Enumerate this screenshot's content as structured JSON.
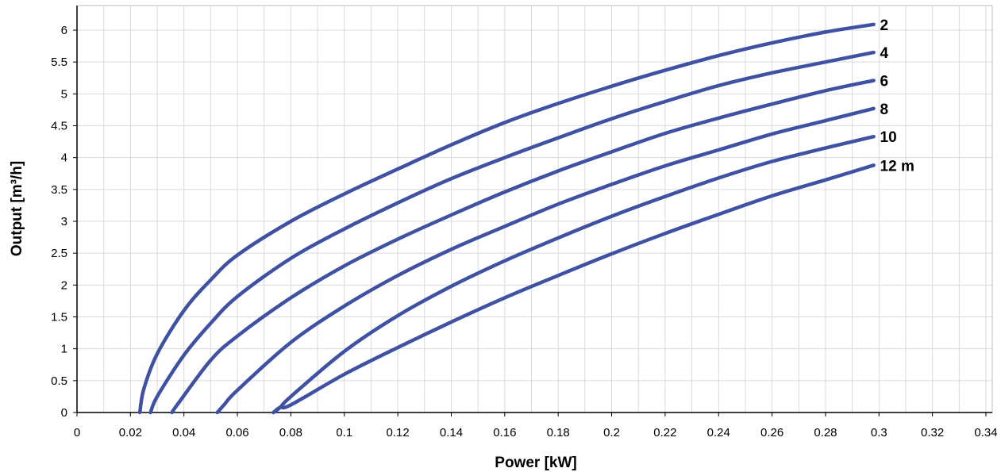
{
  "chart_data": {
    "type": "line",
    "title": "",
    "xlabel": "Power [kW]",
    "ylabel": "Output [m³/h]",
    "xlim": [
      0,
      0.34
    ],
    "ylim": [
      0,
      6.25
    ],
    "x_ticks": [
      "0",
      "0.02",
      "0.04",
      "0.06",
      "0.08",
      "0.1",
      "0.12",
      "0.14",
      "0.16",
      "0.18",
      "0.2",
      "0.22",
      "0.24",
      "0.26",
      "0.28",
      "0.3",
      "0.32",
      "0.34"
    ],
    "y_ticks": [
      "0",
      "0.5",
      "1",
      "1.5",
      "2",
      "2.5",
      "3",
      "3.5",
      "4",
      "4.5",
      "5",
      "5.5",
      "6"
    ],
    "grid": true,
    "legend": "inline-labels-right",
    "line_color": "#3f51a3",
    "series": [
      {
        "name": "2",
        "points": [
          [
            0.0235,
            0
          ],
          [
            0.025,
            0.37
          ],
          [
            0.03,
            0.92
          ],
          [
            0.04,
            1.6
          ],
          [
            0.05,
            2.08
          ],
          [
            0.06,
            2.47
          ],
          [
            0.08,
            3.0
          ],
          [
            0.1,
            3.43
          ],
          [
            0.12,
            3.82
          ],
          [
            0.14,
            4.2
          ],
          [
            0.16,
            4.55
          ],
          [
            0.18,
            4.85
          ],
          [
            0.2,
            5.12
          ],
          [
            0.22,
            5.37
          ],
          [
            0.24,
            5.6
          ],
          [
            0.26,
            5.8
          ],
          [
            0.28,
            5.97
          ],
          [
            0.298,
            6.09
          ]
        ]
      },
      {
        "name": "4",
        "points": [
          [
            0.0275,
            0
          ],
          [
            0.03,
            0.25
          ],
          [
            0.04,
            0.9
          ],
          [
            0.05,
            1.4
          ],
          [
            0.06,
            1.82
          ],
          [
            0.08,
            2.42
          ],
          [
            0.1,
            2.88
          ],
          [
            0.12,
            3.29
          ],
          [
            0.14,
            3.67
          ],
          [
            0.16,
            4.0
          ],
          [
            0.18,
            4.31
          ],
          [
            0.2,
            4.61
          ],
          [
            0.22,
            4.88
          ],
          [
            0.24,
            5.13
          ],
          [
            0.26,
            5.33
          ],
          [
            0.28,
            5.5
          ],
          [
            0.298,
            5.65
          ]
        ]
      },
      {
        "name": "6",
        "points": [
          [
            0.0355,
            0
          ],
          [
            0.038,
            0.15
          ],
          [
            0.05,
            0.82
          ],
          [
            0.06,
            1.2
          ],
          [
            0.08,
            1.8
          ],
          [
            0.1,
            2.3
          ],
          [
            0.12,
            2.72
          ],
          [
            0.14,
            3.1
          ],
          [
            0.16,
            3.46
          ],
          [
            0.18,
            3.79
          ],
          [
            0.2,
            4.09
          ],
          [
            0.22,
            4.38
          ],
          [
            0.24,
            4.62
          ],
          [
            0.26,
            4.84
          ],
          [
            0.28,
            5.05
          ],
          [
            0.298,
            5.21
          ]
        ]
      },
      {
        "name": "8",
        "points": [
          [
            0.0525,
            0
          ],
          [
            0.055,
            0.12
          ],
          [
            0.06,
            0.35
          ],
          [
            0.08,
            1.1
          ],
          [
            0.1,
            1.67
          ],
          [
            0.12,
            2.15
          ],
          [
            0.14,
            2.56
          ],
          [
            0.16,
            2.92
          ],
          [
            0.18,
            3.27
          ],
          [
            0.2,
            3.58
          ],
          [
            0.22,
            3.87
          ],
          [
            0.24,
            4.12
          ],
          [
            0.26,
            4.37
          ],
          [
            0.28,
            4.58
          ],
          [
            0.298,
            4.77
          ]
        ]
      },
      {
        "name": "10",
        "points": [
          [
            0.0735,
            0
          ],
          [
            0.076,
            0.08
          ],
          [
            0.08,
            0.25
          ],
          [
            0.1,
            0.96
          ],
          [
            0.12,
            1.52
          ],
          [
            0.14,
            1.98
          ],
          [
            0.16,
            2.38
          ],
          [
            0.18,
            2.74
          ],
          [
            0.2,
            3.08
          ],
          [
            0.22,
            3.39
          ],
          [
            0.24,
            3.68
          ],
          [
            0.26,
            3.94
          ],
          [
            0.28,
            4.15
          ],
          [
            0.298,
            4.33
          ]
        ]
      },
      {
        "name": "12 m",
        "points": [
          [
            0.0735,
            0
          ],
          [
            0.076,
            0.08
          ],
          [
            0.08,
            0.12
          ],
          [
            0.1,
            0.6
          ],
          [
            0.12,
            1.02
          ],
          [
            0.14,
            1.42
          ],
          [
            0.16,
            1.8
          ],
          [
            0.18,
            2.15
          ],
          [
            0.2,
            2.49
          ],
          [
            0.22,
            2.81
          ],
          [
            0.24,
            3.11
          ],
          [
            0.26,
            3.4
          ],
          [
            0.28,
            3.65
          ],
          [
            0.298,
            3.88
          ]
        ]
      }
    ]
  }
}
